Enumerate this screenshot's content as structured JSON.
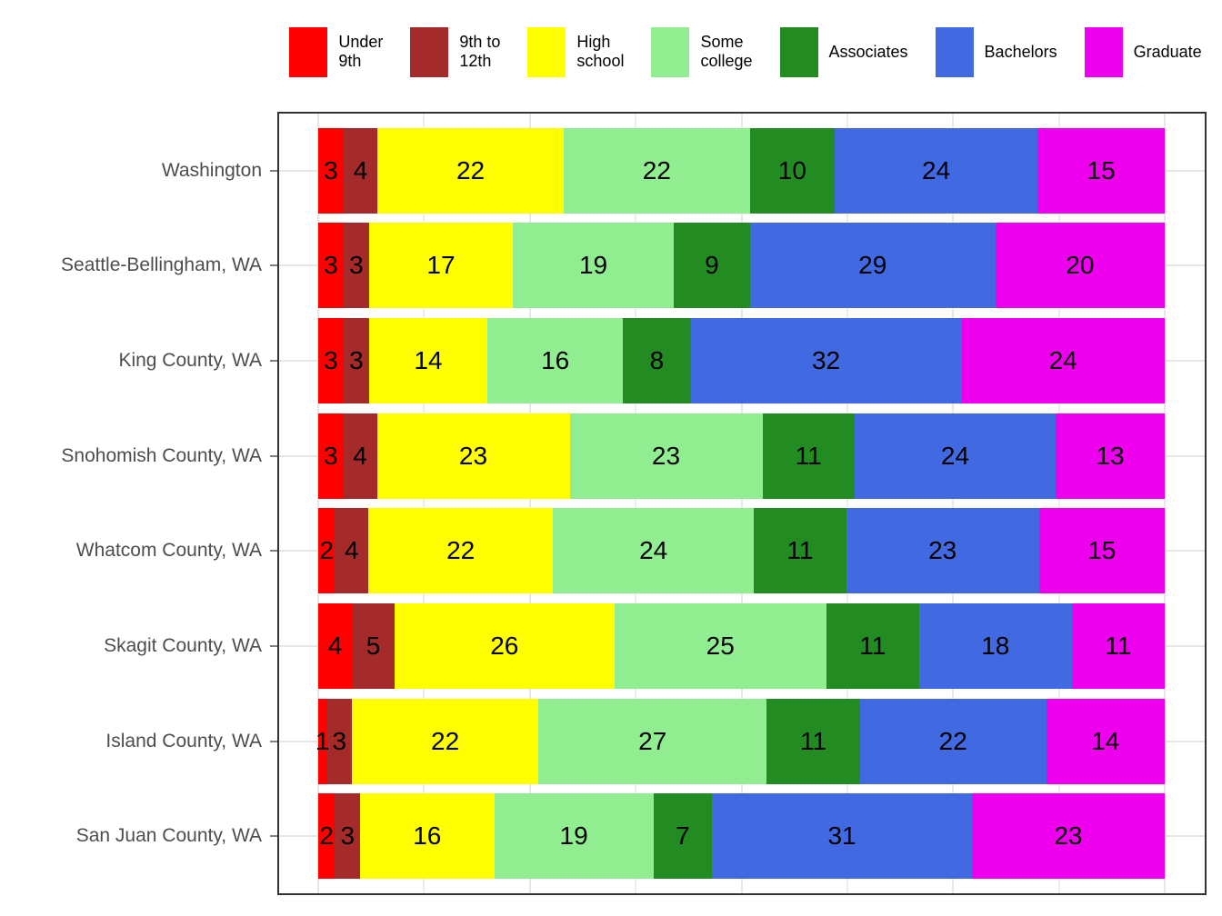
{
  "chart_data": {
    "type": "bar",
    "orientation": "horizontal",
    "stacking": "percent",
    "title": "",
    "xlabel": "",
    "ylabel": "",
    "xlim": [
      0,
      100
    ],
    "x_gridline_step": 12.5,
    "grid": true,
    "legend_position": "top",
    "categories": [
      "Washington",
      "Seattle-Bellingham, WA",
      "King County, WA",
      "Snohomish County, WA",
      "Whatcom County, WA",
      "Skagit County, WA",
      "Island County, WA",
      "San Juan County, WA"
    ],
    "series": [
      {
        "name": "Under 9th",
        "legend_label": "Under\n9th",
        "color": "#FF0000",
        "values": [
          3,
          3,
          3,
          3,
          2,
          4,
          1,
          2
        ]
      },
      {
        "name": "9th to 12th",
        "legend_label": "9th to\n12th",
        "color": "#A52A2A",
        "values": [
          4,
          3,
          3,
          4,
          4,
          5,
          3,
          3
        ]
      },
      {
        "name": "High school",
        "legend_label": "High\nschool",
        "color": "#FFFF00",
        "values": [
          22,
          17,
          14,
          23,
          22,
          26,
          22,
          16
        ]
      },
      {
        "name": "Some college",
        "legend_label": "Some\ncollege",
        "color": "#90EE90",
        "values": [
          22,
          19,
          16,
          23,
          24,
          25,
          27,
          19
        ]
      },
      {
        "name": "Associates",
        "legend_label": "Associates",
        "color": "#228B22",
        "values": [
          10,
          9,
          8,
          11,
          11,
          11,
          11,
          7
        ]
      },
      {
        "name": "Bachelors",
        "legend_label": "Bachelors",
        "color": "#4169E1",
        "values": [
          24,
          29,
          32,
          24,
          23,
          18,
          22,
          31
        ]
      },
      {
        "name": "Graduate",
        "legend_label": "Graduate",
        "color": "#EE00EE",
        "values": [
          15,
          20,
          24,
          13,
          15,
          11,
          14,
          23
        ]
      }
    ]
  },
  "colors": {
    "axis_text": "#4D4D4D",
    "panel_border": "#333333",
    "grid": "#E7E7E7",
    "tick": "#7F7F7F",
    "bar_label": "#000000",
    "background": "#FFFFFF"
  }
}
